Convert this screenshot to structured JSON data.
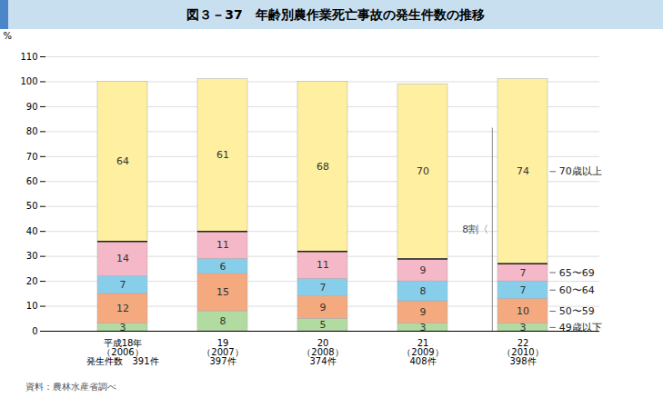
{
  "chart_data": {
    "type": "bar",
    "title": "図３－37　年齢別農作業死亡事故の発生件数の推移",
    "ylabel": "%",
    "categories": [
      "平成18年\n（2006）\n発生件数　391件",
      "19\n（2007）\n397件",
      "20\n（2008）\n374件",
      "21\n（2009）\n408件",
      "22\n（2010）\n398件"
    ],
    "series": [
      {
        "name": "49歳以下",
        "color": "#b2dba1",
        "values": [
          3,
          8,
          5,
          3,
          3
        ]
      },
      {
        "name": "50〜59",
        "color": "#f4a97f",
        "values": [
          12,
          15,
          9,
          9,
          10
        ]
      },
      {
        "name": "60〜64",
        "color": "#87ceeb",
        "values": [
          7,
          6,
          7,
          8,
          7
        ]
      },
      {
        "name": "65〜69",
        "color": "#f4b8c8",
        "values": [
          14,
          11,
          11,
          9,
          7
        ]
      },
      {
        "name": "70歳以上",
        "color": "#fef0a0",
        "values": [
          64,
          61,
          68,
          70,
          74
        ]
      }
    ],
    "stacked": true,
    "data_labels": true,
    "ylim": [
      0,
      110
    ],
    "yticks": [
      0,
      10,
      20,
      30,
      40,
      50,
      60,
      70,
      80,
      90,
      100,
      110
    ],
    "grid": true,
    "annotations": [
      "8割〈"
    ],
    "source": "資料：農林水産省調べ"
  }
}
